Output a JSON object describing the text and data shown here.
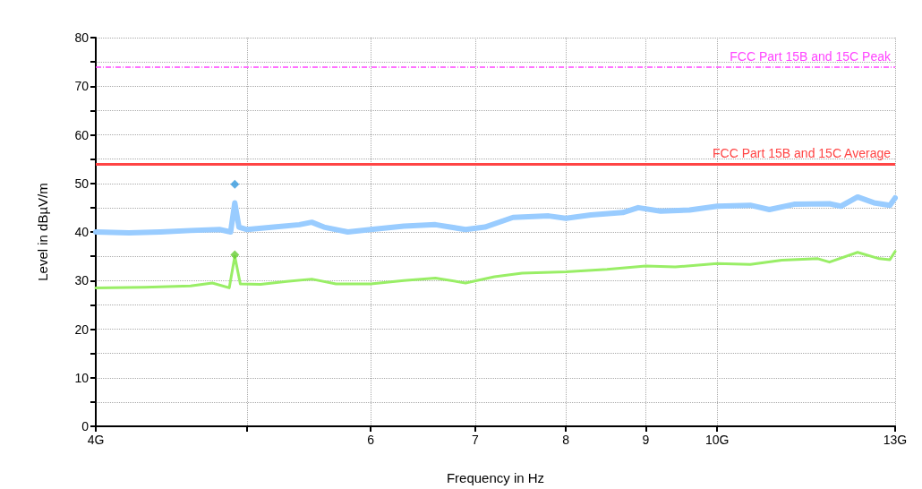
{
  "chart_data": {
    "type": "line",
    "xlabel": "Frequency in Hz",
    "ylabel": "Level in dBµV/m",
    "log": "x",
    "grid": true,
    "xlim": [
      4,
      13
    ],
    "ylim": [
      0,
      80
    ],
    "xticks": [
      {
        "value": 4,
        "label": "4G"
      },
      {
        "value": 5,
        "label": null
      },
      6,
      7,
      8,
      9,
      {
        "value": 10,
        "label": "10G"
      },
      {
        "value": 13,
        "label": "13G"
      }
    ],
    "yticks": [
      0,
      {
        "value": 5,
        "label": null
      },
      10,
      {
        "value": 15,
        "label": null
      },
      20,
      {
        "value": 25,
        "label": null
      },
      30,
      {
        "value": 35,
        "label": null
      },
      40,
      {
        "value": 45,
        "label": null
      },
      50,
      {
        "value": 55,
        "label": null
      },
      60,
      {
        "value": 65,
        "label": null
      },
      70,
      {
        "value": 75,
        "label": null
      },
      80
    ],
    "ref_lines": [
      {
        "axis": "y",
        "value": 74,
        "label": "FCC Part 15B and 15C Peak",
        "color": "#ff44ff",
        "line_style": "dashed"
      },
      {
        "axis": "y",
        "value": 54,
        "label": "FCC Part 15B and 15C Average",
        "color": "#ff4444",
        "line_style": "solid"
      }
    ],
    "series": [
      {
        "color": "#99ccff",
        "marker": "none",
        "x": [
          4.0,
          4.2,
          4.4,
          4.6,
          4.8,
          4.88,
          4.91,
          4.94,
          5.0,
          5.2,
          5.4,
          5.5,
          5.6,
          5.8,
          6.0,
          6.3,
          6.6,
          6.9,
          7.1,
          7.4,
          7.8,
          8.0,
          8.3,
          8.7,
          8.9,
          9.2,
          9.6,
          10.0,
          10.5,
          10.8,
          11.2,
          11.8,
          12.0,
          12.3,
          12.6,
          12.9,
          13.0
        ],
        "values": [
          40,
          39.8,
          40,
          40.3,
          40.5,
          40,
          46,
          41,
          40.5,
          41,
          41.5,
          42,
          41,
          40,
          40.5,
          41.2,
          41.5,
          40.5,
          41,
          43,
          43.3,
          42.8,
          43.5,
          44,
          45,
          44.3,
          44.5,
          45.3,
          45.5,
          44.6,
          45.7,
          45.8,
          45.3,
          47.2,
          46,
          45.5,
          47
        ]
      },
      {
        "color": "#99ee66",
        "marker": "none",
        "x": [
          4.0,
          4.3,
          4.6,
          4.75,
          4.87,
          4.91,
          4.95,
          5.1,
          5.3,
          5.5,
          5.7,
          6.0,
          6.3,
          6.6,
          6.9,
          7.2,
          7.5,
          8.0,
          8.5,
          9.0,
          9.4,
          10.0,
          10.5,
          11.0,
          11.6,
          11.8,
          12.3,
          12.7,
          12.9,
          13.0
        ],
        "values": [
          28.5,
          28.6,
          28.9,
          29.5,
          28.5,
          35,
          29.3,
          29.2,
          29.8,
          30.3,
          29.3,
          29.3,
          30,
          30.5,
          29.5,
          30.8,
          31.5,
          31.8,
          32.3,
          33,
          32.8,
          33.5,
          33.3,
          34.2,
          34.5,
          33.8,
          35.8,
          34.5,
          34.3,
          36
        ]
      },
      {
        "type": "scatter",
        "color": "#3399dd",
        "marker": "diamond",
        "x": [
          4.91
        ],
        "values": [
          49.8
        ]
      },
      {
        "type": "scatter",
        "color": "#66cc33",
        "marker": "diamond",
        "x": [
          4.91
        ],
        "values": [
          35.3
        ]
      }
    ]
  }
}
